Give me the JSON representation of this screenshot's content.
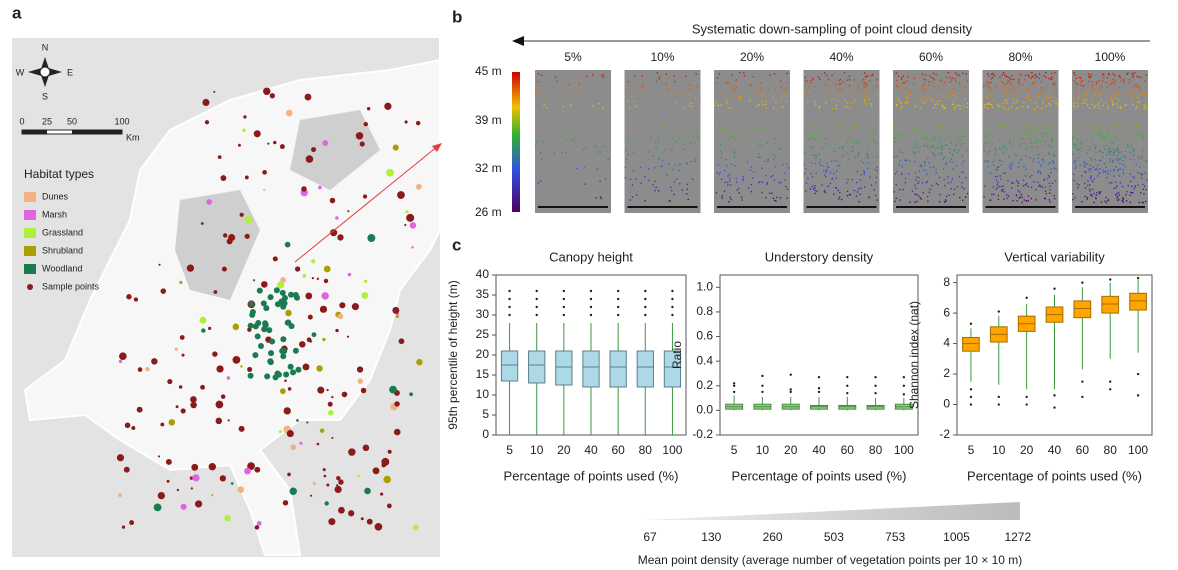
{
  "panel_labels": [
    "a",
    "b",
    "c"
  ],
  "map": {
    "compass": [
      "N",
      "E",
      "S",
      "W"
    ],
    "scale_ticks": [
      0,
      25,
      50,
      100
    ],
    "scale_unit": "Km",
    "legend_title": "Habitat types",
    "legend": [
      {
        "name": "Dunes",
        "color": "#f4b183"
      },
      {
        "name": "Marsh",
        "color": "#e066e0"
      },
      {
        "name": "Grassland",
        "color": "#aef03c"
      },
      {
        "name": "Shrubland",
        "color": "#a8a000"
      },
      {
        "name": "Woodland",
        "color": "#1a7a50"
      }
    ],
    "sample_points": {
      "name": "Sample points",
      "color": "#8b1a1a"
    }
  },
  "point_cloud": {
    "title": "Systematic down-sampling of point cloud density",
    "panels": [
      "5%",
      "10%",
      "20%",
      "40%",
      "60%",
      "80%",
      "100%"
    ],
    "height_labels": [
      "45 m",
      "39 m",
      "32 m",
      "26 m"
    ]
  },
  "chart_data": [
    {
      "type": "box",
      "title": "Canopy height",
      "xlabel": "Percentage of points used (%)",
      "ylabel": "95th percentile of height (m)",
      "categories": [
        "5",
        "10",
        "20",
        "40",
        "60",
        "80",
        "100"
      ],
      "ylim": [
        0,
        40
      ],
      "yticks": [
        0,
        5,
        10,
        15,
        20,
        25,
        30,
        35,
        40
      ],
      "color": "#add8e6",
      "edge_color": "#5a7f8c",
      "whisker_color": "#3a9a3a",
      "boxes": [
        {
          "min": 0,
          "q1": 13.5,
          "median": 17.5,
          "q3": 21,
          "max": 28,
          "outliers": [
            30,
            32,
            34,
            36
          ]
        },
        {
          "min": 0,
          "q1": 13,
          "median": 17.5,
          "q3": 21,
          "max": 28,
          "outliers": [
            30,
            32,
            34,
            36
          ]
        },
        {
          "min": 0,
          "q1": 12.5,
          "median": 17,
          "q3": 21,
          "max": 28,
          "outliers": [
            30,
            32,
            34,
            36
          ]
        },
        {
          "min": 0,
          "q1": 12,
          "median": 17,
          "q3": 21,
          "max": 28,
          "outliers": [
            30,
            32,
            34,
            36
          ]
        },
        {
          "min": 0,
          "q1": 12,
          "median": 17,
          "q3": 21,
          "max": 28,
          "outliers": [
            30,
            32,
            34,
            36
          ]
        },
        {
          "min": 0,
          "q1": 12,
          "median": 17,
          "q3": 21,
          "max": 28,
          "outliers": [
            30,
            32,
            34,
            36
          ]
        },
        {
          "min": 0,
          "q1": 12,
          "median": 17,
          "q3": 21,
          "max": 28,
          "outliers": [
            30,
            32,
            34,
            36
          ]
        }
      ]
    },
    {
      "type": "box",
      "title": "Understory density",
      "xlabel": "Percentage of points used (%)",
      "ylabel": "Ratio",
      "categories": [
        "5",
        "10",
        "20",
        "40",
        "60",
        "80",
        "100"
      ],
      "ylim": [
        -0.2,
        1.1
      ],
      "yticks": [
        -0.2,
        {
          "value": 0,
          "label": "0.0"
        },
        0.2,
        0.4,
        0.6,
        0.8,
        {
          "value": 1,
          "label": "1.0"
        }
      ],
      "color": "#90d080",
      "edge_color": "#4a8a40",
      "whisker_color": "#3a9a3a",
      "boxes": [
        {
          "min": 0,
          "q1": 0.01,
          "median": 0.03,
          "q3": 0.05,
          "max": 0.12,
          "outliers": [
            0.15,
            0.2,
            0.22
          ]
        },
        {
          "min": 0,
          "q1": 0.01,
          "median": 0.03,
          "q3": 0.05,
          "max": 0.11,
          "outliers": [
            0.15,
            0.2,
            0.28
          ]
        },
        {
          "min": 0,
          "q1": 0.01,
          "median": 0.03,
          "q3": 0.05,
          "max": 0.11,
          "outliers": [
            0.15,
            0.17,
            0.29
          ]
        },
        {
          "min": 0,
          "q1": 0.01,
          "median": 0.03,
          "q3": 0.04,
          "max": 0.11,
          "outliers": [
            0.15,
            0.18,
            0.27
          ]
        },
        {
          "min": 0,
          "q1": 0.01,
          "median": 0.03,
          "q3": 0.04,
          "max": 0.11,
          "outliers": [
            0.14,
            0.2,
            0.27
          ]
        },
        {
          "min": 0,
          "q1": 0.01,
          "median": 0.03,
          "q3": 0.04,
          "max": 0.1,
          "outliers": [
            0.14,
            0.2,
            0.27
          ]
        },
        {
          "min": 0,
          "q1": 0.01,
          "median": 0.03,
          "q3": 0.05,
          "max": 0.1,
          "outliers": [
            0.13,
            0.2,
            0.27
          ]
        }
      ]
    },
    {
      "type": "box",
      "title": "Vertical variability",
      "xlabel": "Percentage of points used (%)",
      "ylabel": "Shannon index (nat)",
      "categories": [
        "5",
        "10",
        "20",
        "40",
        "60",
        "80",
        "100"
      ],
      "ylim": [
        -2,
        8.5
      ],
      "yticks": [
        -2,
        0,
        2,
        4,
        6,
        8
      ],
      "color": "#ffa500",
      "edge_color": "#a86b00",
      "whisker_color": "#3a9a3a",
      "boxes": [
        {
          "min": 1.5,
          "q1": 3.5,
          "median": 4,
          "q3": 4.4,
          "max": 5,
          "outliers": [
            0,
            0.5,
            1,
            5.3
          ]
        },
        {
          "min": 1.3,
          "q1": 4.1,
          "median": 4.6,
          "q3": 5.1,
          "max": 5.8,
          "outliers": [
            0,
            0.5,
            6.1
          ]
        },
        {
          "min": 1,
          "q1": 4.8,
          "median": 5.3,
          "q3": 5.8,
          "max": 6.6,
          "outliers": [
            0,
            0.5,
            7
          ]
        },
        {
          "min": 1,
          "q1": 5.4,
          "median": 5.9,
          "q3": 6.4,
          "max": 7.2,
          "outliers": [
            -0.2,
            0.6,
            7.6
          ]
        },
        {
          "min": 2.3,
          "q1": 5.7,
          "median": 6.3,
          "q3": 6.8,
          "max": 7.7,
          "outliers": [
            0.5,
            1.5,
            8
          ]
        },
        {
          "min": 3,
          "q1": 6,
          "median": 6.6,
          "q3": 7.1,
          "max": 8,
          "outliers": [
            1,
            1.5,
            8.2
          ]
        },
        {
          "min": 3.4,
          "q1": 6.2,
          "median": 6.8,
          "q3": 7.3,
          "max": 8.2,
          "outliers": [
            0.6,
            2,
            8.3
          ]
        }
      ]
    }
  ],
  "density": {
    "values": [
      67,
      130,
      260,
      503,
      753,
      1005,
      1272
    ],
    "label": "Mean point density (average number of vegetation points per 10 × 10 m)"
  }
}
